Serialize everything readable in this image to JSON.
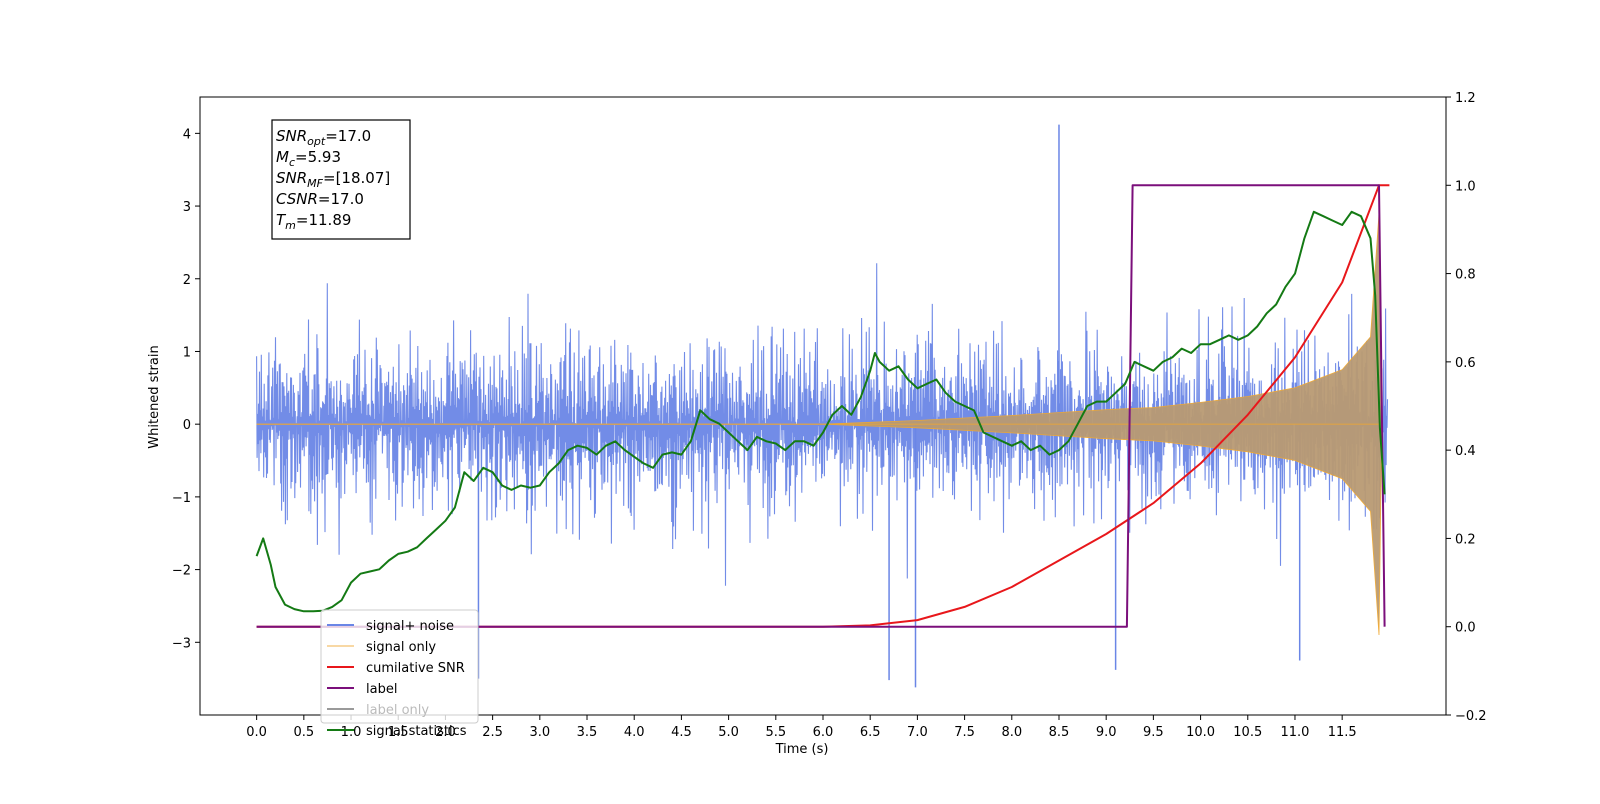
{
  "chart_data": {
    "type": "line",
    "xlabel": "Time (s)",
    "ylabel": "Whitened strain",
    "xlim": [
      -0.6,
      12.6
    ],
    "ylim": [
      -4.0,
      4.5
    ],
    "y2lim": [
      -0.2,
      1.2
    ],
    "x_ticks": [
      "0.0",
      "0.5",
      "1.0",
      "1.5",
      "2.0",
      "2.5",
      "3.0",
      "3.5",
      "4.0",
      "4.5",
      "5.0",
      "5.5",
      "6.0",
      "6.5",
      "7.0",
      "7.5",
      "8.0",
      "8.5",
      "9.0",
      "9.5",
      "10.0",
      "10.5",
      "11.0",
      "11.5"
    ],
    "y_ticks": [
      "−3",
      "−2",
      "−1",
      "0",
      "1",
      "2",
      "3",
      "4"
    ],
    "y2_ticks": [
      "−0.2",
      "0.0",
      "0.2",
      "0.4",
      "0.6",
      "0.8",
      "1.0",
      "1.2"
    ],
    "annotation": [
      {
        "main": "SNR",
        "sub": "opt",
        "value": "=17.0"
      },
      {
        "main": "M",
        "sub": "c",
        "value": "=5.93"
      },
      {
        "main": "SNR",
        "sub": "MF",
        "value": "=[18.07]"
      },
      {
        "main": "CSNR",
        "sub": "",
        "value": "=17.0"
      },
      {
        "main": "T",
        "sub": "m",
        "value": "=11.89"
      }
    ],
    "legend_position": "lower-left",
    "series": [
      {
        "name": "signal+ noise",
        "color": "#6a86e6",
        "axis": "left",
        "kind": "noise_band",
        "x_range": [
          0.0,
          11.98
        ],
        "band_amplitude": 1.6,
        "peak_values": [
          [
            8.5,
            4.12
          ],
          [
            6.98,
            -3.62
          ],
          [
            6.7,
            -3.52
          ],
          [
            2.35,
            -3.5
          ],
          [
            11.05,
            -3.25
          ],
          [
            9.1,
            -3.38
          ]
        ]
      },
      {
        "name": "signal only",
        "color": "#f0a830",
        "axis": "left",
        "kind": "chirp",
        "points": [
          [
            0.0,
            0.0
          ],
          [
            6.0,
            0.0
          ],
          [
            7.0,
            0.05
          ],
          [
            8.0,
            0.12
          ],
          [
            9.0,
            0.2
          ],
          [
            9.5,
            0.23
          ],
          [
            10.0,
            0.3
          ],
          [
            10.5,
            0.38
          ],
          [
            11.0,
            0.5
          ],
          [
            11.5,
            0.75
          ],
          [
            11.8,
            1.2
          ],
          [
            11.89,
            2.9
          ],
          [
            11.92,
            0.0
          ]
        ]
      },
      {
        "name": "cumilative SNR",
        "color": "#e8171b",
        "axis": "right",
        "points": [
          [
            0.0,
            0.0
          ],
          [
            6.0,
            0.0
          ],
          [
            6.5,
            0.003
          ],
          [
            7.0,
            0.015
          ],
          [
            7.5,
            0.045
          ],
          [
            8.0,
            0.09
          ],
          [
            8.5,
            0.15
          ],
          [
            9.0,
            0.21
          ],
          [
            9.5,
            0.28
          ],
          [
            10.0,
            0.37
          ],
          [
            10.5,
            0.48
          ],
          [
            11.0,
            0.61
          ],
          [
            11.5,
            0.78
          ],
          [
            11.89,
            1.0
          ],
          [
            12.0,
            1.0
          ]
        ]
      },
      {
        "name": "label",
        "color": "#7b0f7b",
        "axis": "right",
        "points": [
          [
            0.0,
            0.0
          ],
          [
            9.22,
            0.0
          ],
          [
            9.28,
            1.0
          ],
          [
            11.89,
            1.0
          ],
          [
            11.95,
            0.0
          ]
        ]
      },
      {
        "name": "label only",
        "color": "#9a9a9a",
        "axis": "right",
        "visible": false,
        "points": []
      },
      {
        "name": "signal statistics",
        "color": "#147a14",
        "axis": "right",
        "points": [
          [
            0.0,
            0.16
          ],
          [
            0.07,
            0.2
          ],
          [
            0.15,
            0.14
          ],
          [
            0.2,
            0.09
          ],
          [
            0.3,
            0.05
          ],
          [
            0.4,
            0.04
          ],
          [
            0.5,
            0.035
          ],
          [
            0.6,
            0.035
          ],
          [
            0.7,
            0.036
          ],
          [
            0.8,
            0.045
          ],
          [
            0.9,
            0.06
          ],
          [
            1.0,
            0.1
          ],
          [
            1.1,
            0.12
          ],
          [
            1.2,
            0.125
          ],
          [
            1.3,
            0.13
          ],
          [
            1.4,
            0.15
          ],
          [
            1.5,
            0.165
          ],
          [
            1.6,
            0.17
          ],
          [
            1.7,
            0.18
          ],
          [
            1.8,
            0.2
          ],
          [
            1.9,
            0.22
          ],
          [
            2.0,
            0.24
          ],
          [
            2.1,
            0.27
          ],
          [
            2.2,
            0.35
          ],
          [
            2.3,
            0.33
          ],
          [
            2.4,
            0.36
          ],
          [
            2.5,
            0.35
          ],
          [
            2.6,
            0.32
          ],
          [
            2.7,
            0.31
          ],
          [
            2.8,
            0.32
          ],
          [
            2.9,
            0.315
          ],
          [
            3.0,
            0.32
          ],
          [
            3.1,
            0.35
          ],
          [
            3.2,
            0.37
          ],
          [
            3.3,
            0.4
          ],
          [
            3.4,
            0.41
          ],
          [
            3.5,
            0.405
          ],
          [
            3.6,
            0.39
          ],
          [
            3.7,
            0.41
          ],
          [
            3.8,
            0.42
          ],
          [
            3.9,
            0.4
          ],
          [
            4.0,
            0.385
          ],
          [
            4.1,
            0.37
          ],
          [
            4.2,
            0.36
          ],
          [
            4.3,
            0.39
          ],
          [
            4.4,
            0.395
          ],
          [
            4.5,
            0.39
          ],
          [
            4.6,
            0.42
          ],
          [
            4.7,
            0.49
          ],
          [
            4.8,
            0.47
          ],
          [
            4.9,
            0.46
          ],
          [
            5.0,
            0.44
          ],
          [
            5.1,
            0.42
          ],
          [
            5.2,
            0.4
          ],
          [
            5.3,
            0.43
          ],
          [
            5.4,
            0.42
          ],
          [
            5.5,
            0.415
          ],
          [
            5.6,
            0.4
          ],
          [
            5.7,
            0.42
          ],
          [
            5.8,
            0.42
          ],
          [
            5.9,
            0.41
          ],
          [
            6.0,
            0.44
          ],
          [
            6.1,
            0.48
          ],
          [
            6.2,
            0.5
          ],
          [
            6.3,
            0.48
          ],
          [
            6.4,
            0.52
          ],
          [
            6.5,
            0.58
          ],
          [
            6.55,
            0.62
          ],
          [
            6.6,
            0.6
          ],
          [
            6.7,
            0.58
          ],
          [
            6.8,
            0.59
          ],
          [
            6.9,
            0.56
          ],
          [
            7.0,
            0.54
          ],
          [
            7.1,
            0.55
          ],
          [
            7.2,
            0.56
          ],
          [
            7.3,
            0.53
          ],
          [
            7.4,
            0.51
          ],
          [
            7.5,
            0.5
          ],
          [
            7.6,
            0.49
          ],
          [
            7.7,
            0.44
          ],
          [
            7.8,
            0.43
          ],
          [
            7.9,
            0.42
          ],
          [
            8.0,
            0.41
          ],
          [
            8.1,
            0.42
          ],
          [
            8.2,
            0.4
          ],
          [
            8.3,
            0.41
          ],
          [
            8.4,
            0.39
          ],
          [
            8.5,
            0.4
          ],
          [
            8.6,
            0.42
          ],
          [
            8.7,
            0.46
          ],
          [
            8.8,
            0.5
          ],
          [
            8.9,
            0.51
          ],
          [
            9.0,
            0.51
          ],
          [
            9.1,
            0.53
          ],
          [
            9.2,
            0.55
          ],
          [
            9.3,
            0.6
          ],
          [
            9.4,
            0.59
          ],
          [
            9.5,
            0.58
          ],
          [
            9.6,
            0.6
          ],
          [
            9.7,
            0.61
          ],
          [
            9.8,
            0.63
          ],
          [
            9.9,
            0.62
          ],
          [
            10.0,
            0.64
          ],
          [
            10.1,
            0.64
          ],
          [
            10.2,
            0.65
          ],
          [
            10.3,
            0.66
          ],
          [
            10.4,
            0.65
          ],
          [
            10.5,
            0.66
          ],
          [
            10.6,
            0.68
          ],
          [
            10.7,
            0.71
          ],
          [
            10.8,
            0.73
          ],
          [
            10.9,
            0.77
          ],
          [
            11.0,
            0.8
          ],
          [
            11.1,
            0.88
          ],
          [
            11.2,
            0.94
          ],
          [
            11.3,
            0.93
          ],
          [
            11.4,
            0.92
          ],
          [
            11.5,
            0.91
          ],
          [
            11.6,
            0.94
          ],
          [
            11.7,
            0.93
          ],
          [
            11.8,
            0.88
          ],
          [
            11.85,
            0.75
          ],
          [
            11.9,
            0.45
          ],
          [
            11.95,
            0.3
          ]
        ]
      }
    ]
  }
}
